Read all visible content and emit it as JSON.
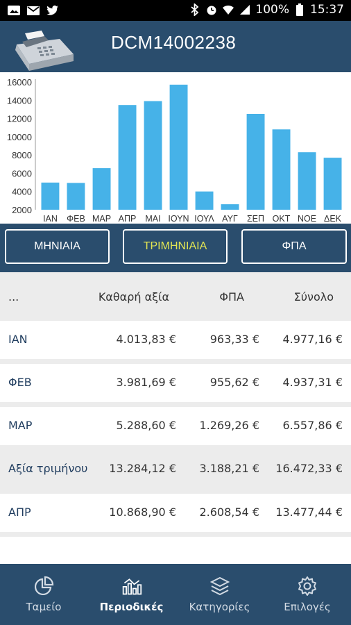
{
  "statusbar": {
    "battery": "100%",
    "time": "15:37"
  },
  "header": {
    "title": "DCM14002238"
  },
  "chart_data": {
    "type": "bar",
    "categories": [
      "ΙΑΝ",
      "ΦΕΒ",
      "ΜΑΡ",
      "ΑΠΡ",
      "ΜΑΙ",
      "ΙΟΥΝ",
      "ΙΟΥΛ",
      "ΑΥΓ",
      "ΣΕΠ",
      "ΟΚΤ",
      "ΝΟΕ",
      "ΔΕΚ"
    ],
    "values": [
      4977,
      4937,
      6558,
      13477,
      13900,
      15700,
      4000,
      2600,
      12500,
      10800,
      8300,
      7700
    ],
    "ylim": [
      2000,
      16000
    ],
    "yticks": [
      2000,
      4000,
      6000,
      8000,
      10000,
      12000,
      14000,
      16000
    ],
    "grid": false,
    "color": "#46b2e8"
  },
  "tabs": [
    {
      "label": "ΜΗΝΙΑΙΑ",
      "active": false
    },
    {
      "label": "ΤΡΙΜΗΝΙΑΙΑ",
      "active": true
    },
    {
      "label": "ΦΠΑ",
      "active": false
    }
  ],
  "table": {
    "headers": [
      "...",
      "Καθαρή αξία",
      "ΦΠΑ",
      "Σύνολο"
    ],
    "rows": [
      {
        "label": "ΙΑΝ",
        "net": "4.013,83 €",
        "vat": "963,33 €",
        "total": "4.977,16 €",
        "subtotal": false
      },
      {
        "label": "ΦΕΒ",
        "net": "3.981,69 €",
        "vat": "955,62 €",
        "total": "4.937,31 €",
        "subtotal": false
      },
      {
        "label": "ΜΑΡ",
        "net": "5.288,60 €",
        "vat": "1.269,26 €",
        "total": "6.557,86 €",
        "subtotal": false
      },
      {
        "label": "Αξία τριμήνου",
        "net": "13.284,12 €",
        "vat": "3.188,21 €",
        "total": "16.472,33 €",
        "subtotal": true
      },
      {
        "label": "ΑΠΡ",
        "net": "10.868,90 €",
        "vat": "2.608,54 €",
        "total": "13.477,44 €",
        "subtotal": false
      }
    ]
  },
  "bottom_nav": [
    {
      "label": "Ταμείο",
      "icon": "pie-chart-icon",
      "active": false
    },
    {
      "label": "Περιοδικές",
      "icon": "bar-chart-icon",
      "active": true
    },
    {
      "label": "Κατηγορίες",
      "icon": "layers-icon",
      "active": false
    },
    {
      "label": "Επιλογές",
      "icon": "gear-icon",
      "active": false
    }
  ]
}
